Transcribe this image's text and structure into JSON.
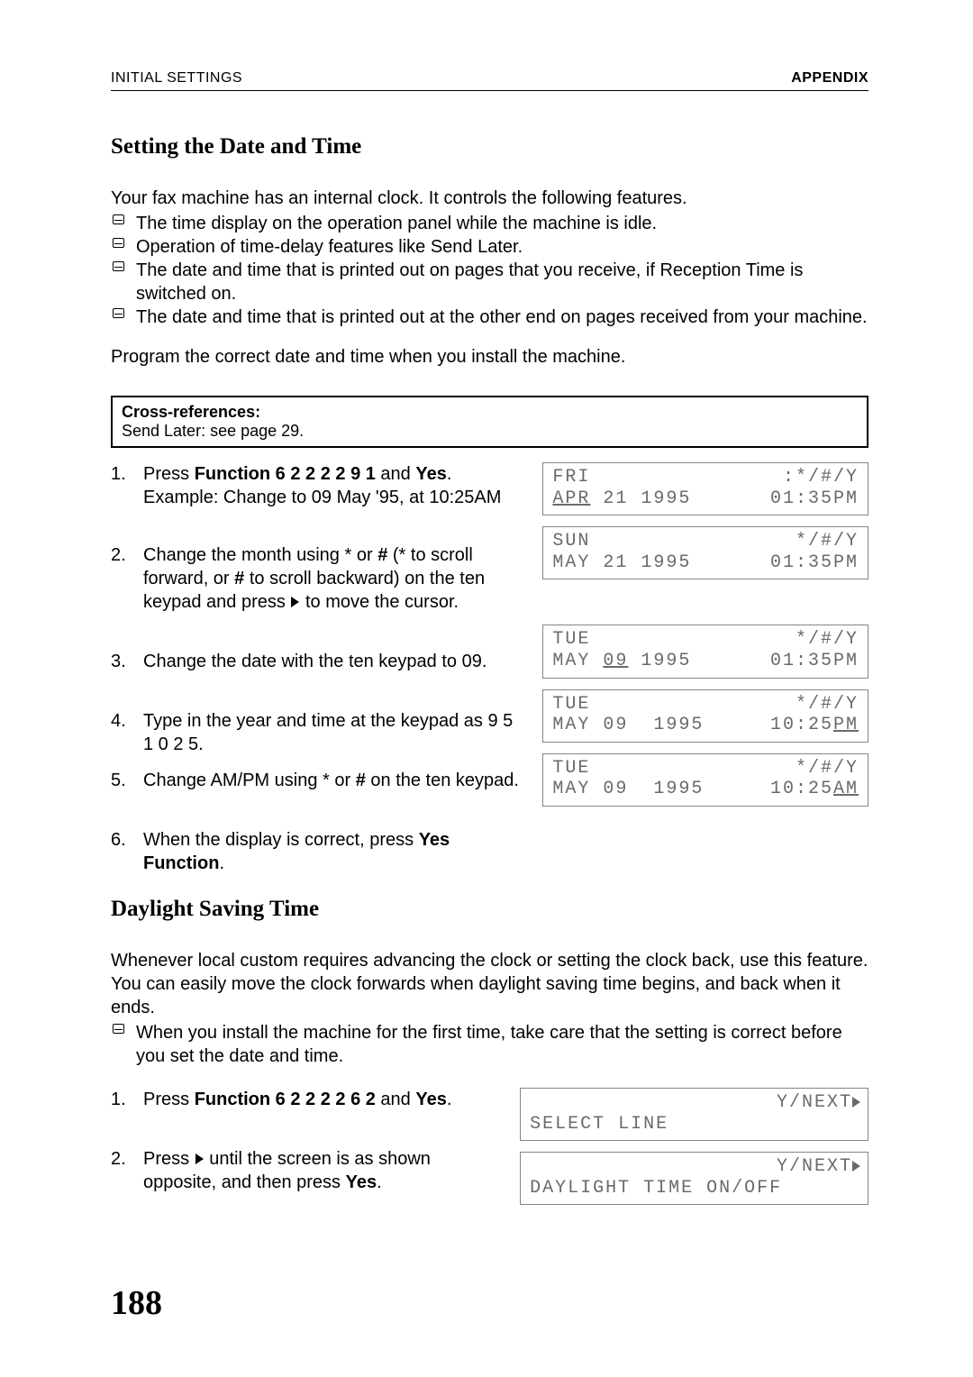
{
  "header": {
    "left": "INITIAL SETTINGS",
    "right": "APPENDIX"
  },
  "section1": {
    "title": "Setting the Date and Time",
    "intro": "Your fax machine has an internal clock. It controls the following features.",
    "bullets": [
      "The time display on the operation panel while the machine is idle.",
      "Operation of time-delay features like Send Later.",
      "The date and time that is printed out on pages that you receive, if Reception Time is switched on.",
      "The date and time that is printed out at the other end on pages received from your machine."
    ],
    "para": "Program the correct date and time when you install the machine.",
    "xref_title": "Cross-references:",
    "xref_body": "Send Later: see page 29.",
    "steps": {
      "s1_a": "Press ",
      "s1_b": "Function 6 2 2 2 2 9 1",
      "s1_c": " and ",
      "s1_d": "Yes",
      "s1_e": ". Example: Change to 09 May '95, at 10:25AM",
      "s2_a": "Change the month using ",
      "s2_b": " or ",
      "s2_c": "#",
      "s2_d": " (",
      "s2_e": "  to scroll forward, or ",
      "s2_f": "#",
      "s2_g": " to scroll backward) on the ten keypad and press ",
      "s2_h": " to move the cursor.",
      "s3": "Change the date with the ten keypad to 09.",
      "s4": "Type in the year and time at the keypad as 9 5 1 0 2 5.",
      "s5_a": "Change AM/PM using ",
      "s5_b": " or ",
      "s5_c": "#",
      "s5_d": " on the ten keypad.",
      "s6_a": "When the display is correct, press ",
      "s6_b": "Yes Function",
      "s6_c": "."
    },
    "lcd": [
      {
        "day": "FRI",
        "suffix_pre": ":",
        "suffix": "*/#/Y",
        "line2_left": "APR 21 1995",
        "line2_right": "01:35PM",
        "ul_left": "APR",
        "ul_right": "",
        "gap_after": "small"
      },
      {
        "day": "SUN",
        "suffix_pre": "",
        "suffix": "*/#/Y",
        "line2_left": "MAY 21 1995",
        "line2_right": "01:35PM",
        "ul_left": "",
        "ul_right": "",
        "gap_after": "large"
      },
      {
        "day": "TUE",
        "suffix_pre": "",
        "suffix": "*/#/Y",
        "line2_left": "MAY 09 1995",
        "line2_right": "01:35PM",
        "ul_left": "09",
        "ul_right": "",
        "gap_after": "small"
      },
      {
        "day": "TUE",
        "suffix_pre": "",
        "suffix": "*/#/Y",
        "line2_left": "MAY 09  1995",
        "line2_right": "10:25PM",
        "ul_left": "",
        "ul_right": "PM",
        "gap_after": "small"
      },
      {
        "day": "TUE",
        "suffix_pre": "",
        "suffix": "*/#/Y",
        "line2_left": "MAY 09  1995",
        "line2_right": "10:25AM",
        "ul_left": "",
        "ul_right": "AM",
        "gap_after": "none"
      }
    ]
  },
  "section2": {
    "title": "Daylight Saving Time",
    "para": "Whenever local custom requires advancing the clock or setting the clock back, use this feature. You can easily move the clock forwards when daylight saving time begins, and back when it ends.",
    "bullets": [
      "When you install the machine for the first time, take care that the setting is correct before you set the date and time."
    ],
    "steps": {
      "s1_a": "Press ",
      "s1_b": "Function 6 2 2 2 2 6 2",
      "s1_c": " and ",
      "s1_d": "Yes",
      "s1_e": ".",
      "s2_a": "Press ",
      "s2_b": " until the screen is as shown opposite, and then press ",
      "s2_c": "Yes",
      "s2_d": "."
    },
    "lcd": [
      {
        "top_right": "Y/NEXT",
        "line2": "SELECT LINE"
      },
      {
        "top_right": "Y/NEXT",
        "line2": "DAYLIGHT TIME ON/OFF"
      }
    ]
  },
  "page_number": "188",
  "symbols": {
    "star": "*"
  }
}
